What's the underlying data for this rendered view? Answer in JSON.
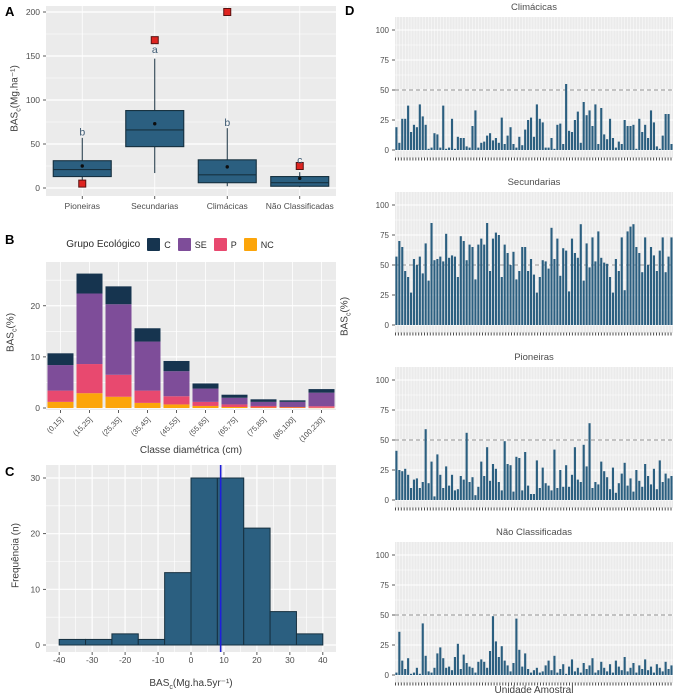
{
  "panel_labels": [
    "A",
    "B",
    "C",
    "D"
  ],
  "colors": {
    "panel_background": "#ebebeb",
    "grid": "#ffffff",
    "bar_fill": "#2b5f80",
    "bar_stroke": "#16303f",
    "outlier_fill": "#df2420",
    "outlier_stroke": "#591110",
    "sig_letter": "#3d5a73",
    "tick_text": "#4d4d4d",
    "dashed_line": "#969696",
    "mean_vline": "#1f1fd9"
  },
  "chart_data": [
    {
      "id": "A",
      "type": "boxplot",
      "ylabel": {
        "base": "BAS",
        "sub": "c",
        "rest": "(Mg.ha⁻¹)"
      },
      "ylim": [
        0,
        205
      ],
      "yticks": [
        0,
        50,
        100,
        150,
        200
      ],
      "yticks_minor": [
        25,
        75,
        125,
        175
      ],
      "categories": [
        "Pioneiras",
        "Secundarias",
        "Climácicas",
        "Não Classificadas"
      ],
      "boxes": [
        {
          "whisker_low": 8,
          "q1": 13,
          "median": 21,
          "q3": 31,
          "whisker_high": 57,
          "mean": 25,
          "outliers": [
            5
          ],
          "sig_letter": "b",
          "letter_y": 63
        },
        {
          "whisker_low": 17,
          "q1": 47,
          "median": 66,
          "q3": 88,
          "whisker_high": 147,
          "mean": 73,
          "outliers": [
            168
          ],
          "sig_letter": "a",
          "letter_y": 157
        },
        {
          "whisker_low": 2,
          "q1": 6,
          "median": 15,
          "q3": 32,
          "whisker_high": 68,
          "mean": 24,
          "outliers": [
            200
          ],
          "sig_letter": "b",
          "letter_y": 74
        },
        {
          "whisker_low": 1,
          "q1": 2,
          "median": 6,
          "q3": 13,
          "whisker_high": 18,
          "mean": 11,
          "outliers": [
            25
          ],
          "sig_letter": "c",
          "letter_y": 31
        }
      ]
    },
    {
      "id": "B",
      "type": "stacked-bar",
      "legend": {
        "title": "Grupo Ecológico",
        "items": [
          {
            "label": "C",
            "color": "#16344f"
          },
          {
            "label": "SE",
            "color": "#7e4d99"
          },
          {
            "label": "P",
            "color": "#e8496f"
          },
          {
            "label": "NC",
            "color": "#fca50a"
          }
        ]
      },
      "ylabel": {
        "base": "BAS",
        "sub": "c",
        "rest": "(%)"
      },
      "xlabel": "Classe diamétrica (cm)",
      "ylim": [
        0,
        27
      ],
      "yticks": [
        0,
        10,
        20
      ],
      "yticks_minor": [
        5,
        15,
        25
      ],
      "categories": [
        "(0,15]",
        "(15,25]",
        "(25,35]",
        "(35,45]",
        "(45,55]",
        "(55,65]",
        "(65,75]",
        "(75,85]",
        "(85,100]",
        "(100,230]"
      ],
      "series": [
        {
          "name": "NC",
          "color": "#fca50a",
          "values": [
            1.2,
            2.9,
            2.2,
            1.0,
            0.7,
            0.4,
            0.2,
            0.1,
            0.1,
            0.05
          ]
        },
        {
          "name": "P",
          "color": "#e8496f",
          "values": [
            2.2,
            5.7,
            4.3,
            2.4,
            1.6,
            0.8,
            0.5,
            0.3,
            0.1,
            0.3
          ]
        },
        {
          "name": "SE",
          "color": "#7e4d99",
          "values": [
            5.0,
            13.8,
            13.8,
            9.6,
            4.9,
            2.6,
            1.3,
            0.8,
            1.0,
            2.65
          ]
        },
        {
          "name": "C",
          "color": "#16344f",
          "values": [
            2.3,
            3.9,
            3.5,
            2.6,
            2.0,
            1.0,
            0.6,
            0.5,
            0.3,
            0.7
          ]
        }
      ]
    },
    {
      "id": "C",
      "type": "histogram",
      "ylabel": "Frequência (n)",
      "xlabel": {
        "base": "BAS",
        "sub": "c",
        "rest": "(Mg.ha.5yr⁻¹)"
      },
      "ylim": [
        0,
        31
      ],
      "yticks": [
        0,
        10,
        20,
        30
      ],
      "yticks_minor": [
        5,
        15,
        25
      ],
      "xlim": [
        -44,
        44
      ],
      "xticks": [
        -40,
        -30,
        -20,
        -10,
        0,
        10,
        20,
        30,
        40
      ],
      "bin_edges": [
        -40,
        -32,
        -24,
        -16,
        -8,
        0,
        8,
        16,
        24,
        32,
        40
      ],
      "counts": [
        1,
        1,
        2,
        1,
        13,
        30,
        30,
        21,
        6,
        2
      ],
      "vline_x": 9
    },
    {
      "id": "D",
      "type": "bar-small-multiples",
      "ylabel": {
        "base": "BAS",
        "sub": "c",
        "rest": "(%)"
      },
      "xlabel": "Unidade Amostral",
      "ylim": [
        0,
        105
      ],
      "yticks": [
        0,
        25,
        50,
        75,
        100
      ],
      "yticks_minor": [
        12.5,
        37.5,
        62.5,
        87.5
      ],
      "dashed_hline": 50,
      "subplots": [
        {
          "title": "Climácicas",
          "values": [
            19,
            6,
            26,
            26,
            37,
            15,
            21,
            19,
            38,
            28,
            21,
            1,
            2,
            14,
            13,
            2,
            37,
            1,
            2,
            26,
            1,
            11,
            10,
            10,
            3,
            2,
            20,
            33,
            2,
            6,
            7,
            12,
            14,
            8,
            10,
            6,
            27,
            5,
            12,
            19,
            5,
            2,
            11,
            4,
            17,
            25,
            27,
            11,
            38,
            26,
            23,
            2,
            2,
            10,
            1,
            21,
            22,
            5,
            55,
            16,
            15,
            25,
            32,
            6,
            40,
            29,
            33,
            20,
            38,
            5,
            35,
            13,
            9,
            26,
            10,
            2,
            7,
            5,
            25,
            20,
            20,
            21,
            1,
            26,
            15,
            21,
            10,
            33,
            23,
            3,
            1,
            12,
            30,
            30,
            5
          ]
        },
        {
          "title": "Secundarias",
          "values": [
            57,
            70,
            65,
            45,
            40,
            27,
            55,
            50,
            57,
            43,
            68,
            37,
            85,
            54,
            55,
            57,
            53,
            76,
            56,
            58,
            57,
            40,
            74,
            70,
            54,
            67,
            65,
            38,
            67,
            72,
            67,
            85,
            45,
            72,
            77,
            75,
            40,
            67,
            60,
            50,
            61,
            38,
            45,
            65,
            65,
            45,
            55,
            42,
            27,
            40,
            54,
            53,
            47,
            81,
            55,
            72,
            41,
            64,
            62,
            28,
            72,
            60,
            56,
            84,
            37,
            68,
            48,
            73,
            53,
            78,
            56,
            52,
            51,
            40,
            27,
            55,
            45,
            73,
            29,
            78,
            82,
            84,
            65,
            60,
            44,
            73,
            50,
            65,
            58,
            45,
            62,
            73,
            44,
            57,
            73
          ]
        },
        {
          "title": "Pioneiras",
          "values": [
            41,
            25,
            24,
            26,
            21,
            10,
            17,
            18,
            10,
            15,
            59,
            14,
            32,
            3,
            38,
            21,
            10,
            28,
            12,
            21,
            8,
            9,
            20,
            17,
            56,
            15,
            19,
            4,
            11,
            32,
            20,
            44,
            16,
            30,
            26,
            15,
            8,
            49,
            30,
            29,
            7,
            36,
            35,
            8,
            40,
            12,
            5,
            5,
            33,
            10,
            27,
            14,
            12,
            8,
            42,
            10,
            25,
            11,
            29,
            11,
            21,
            44,
            17,
            15,
            46,
            28,
            64,
            10,
            15,
            13,
            32,
            24,
            19,
            9,
            27,
            6,
            14,
            22,
            31,
            12,
            18,
            7,
            25,
            16,
            11,
            30,
            20,
            13,
            26,
            9,
            33,
            15,
            22,
            18,
            20
          ]
        },
        {
          "title": "Não Classificadas",
          "values": [
            2,
            36,
            12,
            5,
            14,
            1,
            2,
            6,
            1,
            43,
            16,
            3,
            2,
            6,
            18,
            23,
            14,
            6,
            7,
            4,
            15,
            26,
            5,
            17,
            10,
            7,
            6,
            2,
            11,
            13,
            11,
            6,
            20,
            49,
            28,
            15,
            24,
            12,
            8,
            3,
            10,
            47,
            21,
            7,
            18,
            5,
            2,
            4,
            6,
            2,
            3,
            8,
            12,
            4,
            16,
            2,
            5,
            9,
            1,
            7,
            13,
            3,
            6,
            2,
            10,
            5,
            8,
            14,
            2,
            4,
            11,
            6,
            3,
            9,
            2,
            12,
            7,
            4,
            15,
            3,
            6,
            10,
            2,
            8,
            5,
            13,
            4,
            7,
            2,
            9,
            6,
            3,
            11,
            5,
            8
          ]
        }
      ]
    }
  ]
}
